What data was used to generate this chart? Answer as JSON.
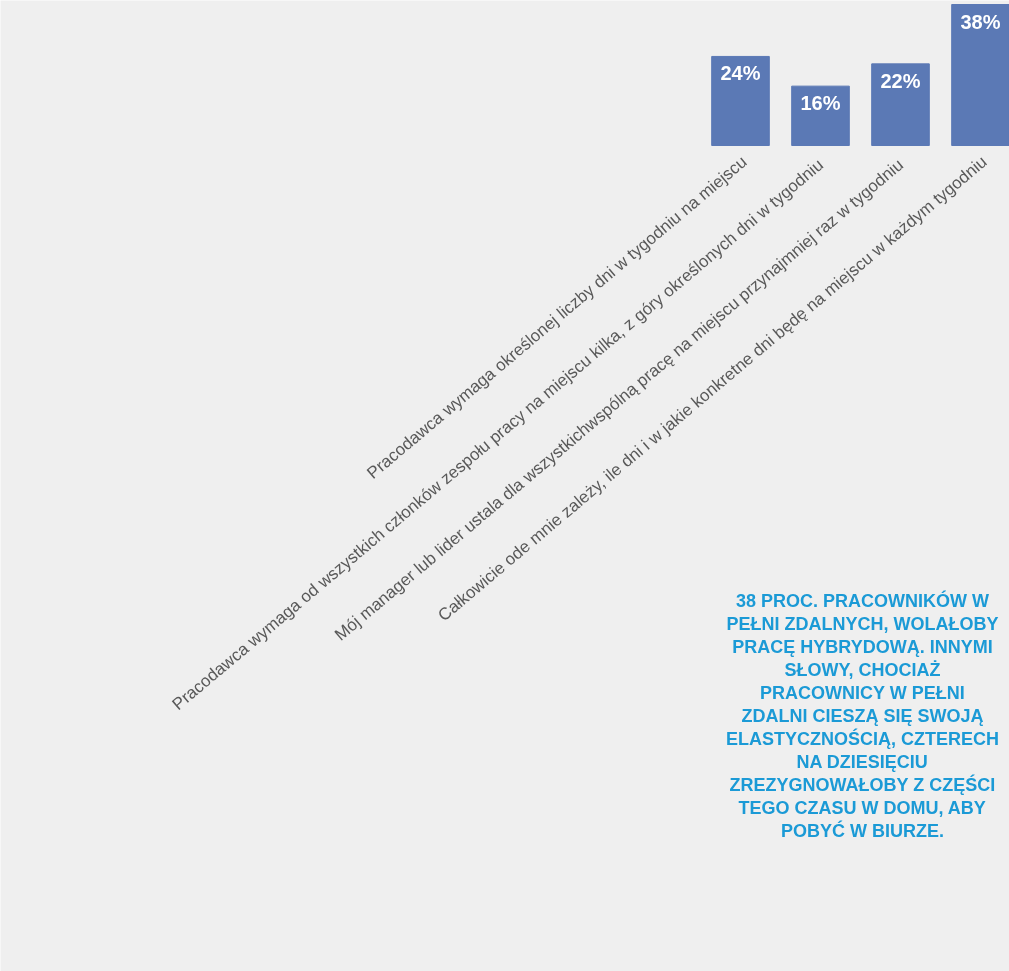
{
  "chart_data": {
    "type": "bar",
    "categories": [
      "Pracodawca wymaga określonej liczby dni w tygodniu na miejscu",
      "Pracodawca wymaga od  wszystkich członków zespołu pracy na miejscu kilka, z góry określonych dni w tygodniu",
      "Mój manager lub lider ustala dla wszystkichwspólną pracę na miejscu  przynajmniej raz w tygodniu",
      "Całkowicie ode mnie zależy, ile dni i w jakie konkretne dni będę na miejscu w każdym tygodniu"
    ],
    "values": [
      24,
      16,
      22,
      38
    ],
    "value_labels": [
      "24%",
      "16%",
      "22%",
      "38%"
    ],
    "color": "#5b79b5",
    "grid": false,
    "annotations": [
      "38 PROC. PRACOWNIKÓW W PEŁNI ZDALNYCH, WOLAŁOBY PRACĘ HYBRYDOWĄ. INNYMI SŁOWY, CHOCIAŻ PRACOWNICY W PEŁNI ZDALNI CIESZĄ SIĘ SWOJĄ ELASTYCZNOŚCIĄ, CZTERECH NA DZIESIĘCIU ZREZYGNOWAŁOBY Z CZĘŚCI TEGO CZASU W DOMU, ABY POBYĆ W BIURZE."
    ]
  }
}
